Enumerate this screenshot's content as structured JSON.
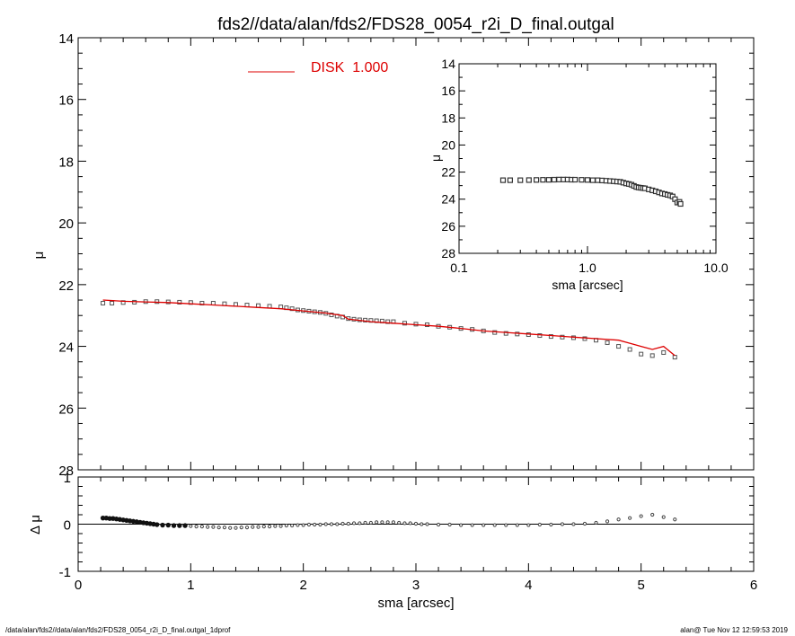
{
  "title": "fds2//data/alan/fds2/FDS28_0054_r2i_D_final.outgal",
  "footer_left": "/data/alan/fds2//data/alan/fds2/FDS28_0054_r2i_D_final.outgal_1dprof",
  "footer_right": "alan@  Tue Nov 12 12:59:53 2019",
  "colors": {
    "model": "#dd0000",
    "data": "#555555",
    "axis": "#000000"
  },
  "chart_data": [
    {
      "panel": "main",
      "type": "line",
      "xlim": [
        0,
        6
      ],
      "ylim": [
        28,
        14
      ],
      "ylabel": "μ",
      "y_inverted": true,
      "ytick_labels": [
        "14",
        "16",
        "18",
        "20",
        "22",
        "24",
        "26",
        "28"
      ],
      "legend": {
        "label": "DISK  1.000",
        "placement": "top-center"
      },
      "data_points": {
        "x": [
          0.22,
          0.3,
          0.4,
          0.5,
          0.6,
          0.7,
          0.8,
          0.9,
          1.0,
          1.1,
          1.2,
          1.3,
          1.4,
          1.5,
          1.6,
          1.7,
          1.8,
          1.85,
          1.9,
          1.95,
          2.0,
          2.05,
          2.1,
          2.15,
          2.2,
          2.25,
          2.3,
          2.35,
          2.4,
          2.45,
          2.5,
          2.55,
          2.6,
          2.65,
          2.7,
          2.75,
          2.8,
          2.9,
          3.0,
          3.1,
          3.2,
          3.3,
          3.4,
          3.5,
          3.6,
          3.7,
          3.8,
          3.9,
          4.0,
          4.1,
          4.2,
          4.3,
          4.4,
          4.5,
          4.6,
          4.7,
          4.8,
          4.9,
          5.0,
          5.1,
          5.2,
          5.3
        ],
        "y": [
          22.6,
          22.6,
          22.58,
          22.57,
          22.55,
          22.55,
          22.56,
          22.57,
          22.58,
          22.6,
          22.6,
          22.62,
          22.64,
          22.66,
          22.68,
          22.7,
          22.72,
          22.75,
          22.78,
          22.82,
          22.84,
          22.86,
          22.88,
          22.9,
          22.93,
          22.98,
          23.02,
          23.05,
          23.1,
          23.12,
          23.14,
          23.15,
          23.16,
          23.17,
          23.18,
          23.2,
          23.2,
          23.25,
          23.28,
          23.3,
          23.35,
          23.38,
          23.42,
          23.45,
          23.5,
          23.55,
          23.58,
          23.6,
          23.62,
          23.65,
          23.68,
          23.7,
          23.72,
          23.75,
          23.8,
          23.88,
          24.0,
          24.1,
          24.25,
          24.3,
          24.2,
          24.35
        ]
      },
      "model_line": {
        "name": "DISK  1.000",
        "x": [
          0.22,
          0.4,
          0.6,
          0.8,
          1.0,
          1.2,
          1.4,
          1.6,
          1.8,
          2.0,
          2.2,
          2.35,
          2.4,
          2.6,
          2.8,
          3.0,
          3.2,
          3.4,
          3.6,
          3.8,
          4.0,
          4.2,
          4.4,
          4.6,
          4.8,
          4.9,
          5.0,
          5.1,
          5.2,
          5.3
        ],
        "y": [
          22.5,
          22.54,
          22.56,
          22.58,
          22.62,
          22.66,
          22.7,
          22.74,
          22.78,
          22.85,
          22.92,
          23.0,
          23.12,
          23.2,
          23.25,
          23.3,
          23.35,
          23.42,
          23.5,
          23.55,
          23.6,
          23.65,
          23.7,
          23.75,
          23.8,
          23.9,
          24.0,
          24.1,
          24.0,
          24.3
        ]
      }
    },
    {
      "panel": "inset",
      "type": "scatter",
      "x_scale": "log",
      "xlim": [
        0.1,
        10.0
      ],
      "ylim": [
        28,
        14
      ],
      "y_inverted": true,
      "xlabel": "sma [arcsec]",
      "ylabel": "μ",
      "xtick_labels": [
        "0.1",
        "1.0",
        "10.0"
      ],
      "ytick_labels": [
        "14",
        "16",
        "18",
        "20",
        "22",
        "24",
        "26",
        "28"
      ],
      "x": [
        0.22,
        0.25,
        0.3,
        0.35,
        0.4,
        0.45,
        0.5,
        0.55,
        0.6,
        0.65,
        0.7,
        0.75,
        0.8,
        0.9,
        1.0,
        1.1,
        1.2,
        1.3,
        1.4,
        1.5,
        1.6,
        1.7,
        1.8,
        1.9,
        2.0,
        2.1,
        2.2,
        2.3,
        2.4,
        2.5,
        2.6,
        2.7,
        2.8,
        3.0,
        3.2,
        3.4,
        3.6,
        3.8,
        4.0,
        4.2,
        4.4,
        4.6,
        4.8,
        5.0,
        5.2,
        5.3
      ],
      "y": [
        22.6,
        22.6,
        22.6,
        22.59,
        22.58,
        22.57,
        22.57,
        22.56,
        22.55,
        22.55,
        22.55,
        22.56,
        22.56,
        22.57,
        22.58,
        22.6,
        22.6,
        22.62,
        22.64,
        22.66,
        22.68,
        22.7,
        22.72,
        22.78,
        22.84,
        22.88,
        22.93,
        23.02,
        23.1,
        23.14,
        23.16,
        23.18,
        23.2,
        23.28,
        23.35,
        23.42,
        23.5,
        23.58,
        23.62,
        23.68,
        23.72,
        23.8,
        24.0,
        24.25,
        24.2,
        24.35
      ]
    },
    {
      "panel": "residual",
      "type": "scatter",
      "xlim": [
        0,
        6
      ],
      "ylim": [
        -1,
        1
      ],
      "xlabel": "sma [arcsec]",
      "ylabel": "Δ μ",
      "xtick_labels": [
        "0",
        "1",
        "2",
        "3",
        "4",
        "5",
        "6"
      ],
      "ytick_labels": [
        "-1",
        "0",
        "1"
      ],
      "x": [
        0.22,
        0.25,
        0.28,
        0.31,
        0.34,
        0.37,
        0.4,
        0.43,
        0.46,
        0.49,
        0.52,
        0.55,
        0.58,
        0.61,
        0.64,
        0.67,
        0.7,
        0.75,
        0.8,
        0.85,
        0.9,
        0.95,
        1.0,
        1.05,
        1.1,
        1.15,
        1.2,
        1.25,
        1.3,
        1.35,
        1.4,
        1.45,
        1.5,
        1.55,
        1.6,
        1.65,
        1.7,
        1.75,
        1.8,
        1.85,
        1.9,
        1.95,
        2.0,
        2.05,
        2.1,
        2.15,
        2.2,
        2.25,
        2.3,
        2.35,
        2.4,
        2.45,
        2.5,
        2.55,
        2.6,
        2.65,
        2.7,
        2.75,
        2.8,
        2.85,
        2.9,
        2.95,
        3.0,
        3.05,
        3.1,
        3.2,
        3.3,
        3.4,
        3.5,
        3.6,
        3.7,
        3.8,
        3.9,
        4.0,
        4.1,
        4.2,
        4.3,
        4.4,
        4.5,
        4.6,
        4.7,
        4.8,
        4.9,
        5.0,
        5.1,
        5.2,
        5.3
      ],
      "y": [
        0.13,
        0.13,
        0.12,
        0.12,
        0.11,
        0.1,
        0.09,
        0.08,
        0.07,
        0.06,
        0.05,
        0.04,
        0.03,
        0.02,
        0.01,
        0.0,
        -0.01,
        -0.02,
        -0.02,
        -0.03,
        -0.03,
        -0.03,
        -0.04,
        -0.05,
        -0.05,
        -0.06,
        -0.06,
        -0.07,
        -0.07,
        -0.08,
        -0.08,
        -0.07,
        -0.07,
        -0.06,
        -0.06,
        -0.05,
        -0.05,
        -0.04,
        -0.04,
        -0.03,
        -0.03,
        -0.02,
        -0.02,
        -0.01,
        -0.01,
        -0.01,
        0.0,
        0.0,
        0.0,
        0.01,
        0.01,
        0.02,
        0.02,
        0.03,
        0.03,
        0.04,
        0.04,
        0.04,
        0.04,
        0.03,
        0.02,
        0.02,
        0.01,
        0.0,
        0.0,
        -0.01,
        -0.01,
        -0.02,
        -0.02,
        -0.02,
        -0.02,
        -0.02,
        -0.02,
        -0.02,
        -0.01,
        -0.01,
        0.0,
        0.0,
        0.01,
        0.03,
        0.06,
        0.1,
        0.13,
        0.17,
        0.2,
        0.15,
        0.1
      ]
    }
  ]
}
